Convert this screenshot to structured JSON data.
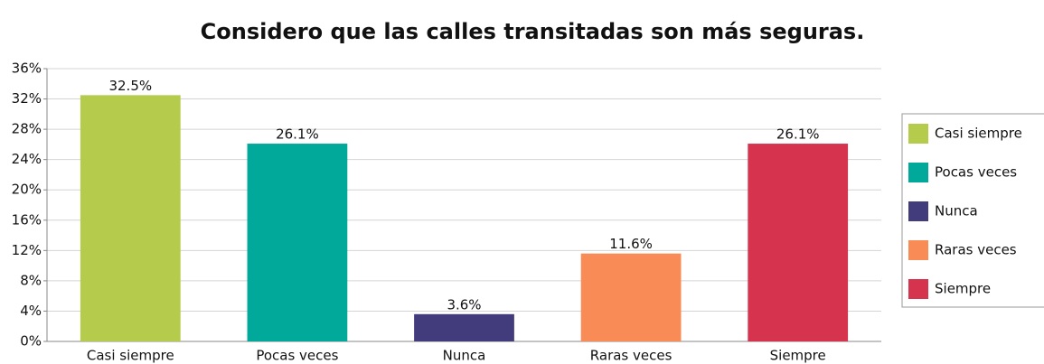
{
  "chart_data": {
    "type": "bar",
    "title": "Considero que las calles transitadas son más seguras.",
    "categories": [
      "Casi siempre",
      "Pocas veces",
      "Nunca",
      "Raras veces",
      "Siempre"
    ],
    "values": [
      32.5,
      26.1,
      3.6,
      11.6,
      26.1
    ],
    "value_labels": [
      "32.5%",
      "26.1%",
      "3.6%",
      "11.6%",
      "26.1%"
    ],
    "colors": [
      "#b5cb4b",
      "#00a99a",
      "#423c7c",
      "#f98c56",
      "#d6334f"
    ],
    "ylim": [
      0,
      36
    ],
    "yticks": [
      {
        "value": 0,
        "label": "0%"
      },
      {
        "value": 4,
        "label": "4%"
      },
      {
        "value": 8,
        "label": "8%"
      },
      {
        "value": 12,
        "label": "12%"
      },
      {
        "value": 16,
        "label": "16%"
      },
      {
        "value": 20,
        "label": "20%"
      },
      {
        "value": 24,
        "label": "24%"
      },
      {
        "value": 28,
        "label": "28%"
      },
      {
        "value": 32,
        "label": "32%"
      },
      {
        "value": 36,
        "label": "36%"
      }
    ],
    "grid": true,
    "legend": "right"
  }
}
